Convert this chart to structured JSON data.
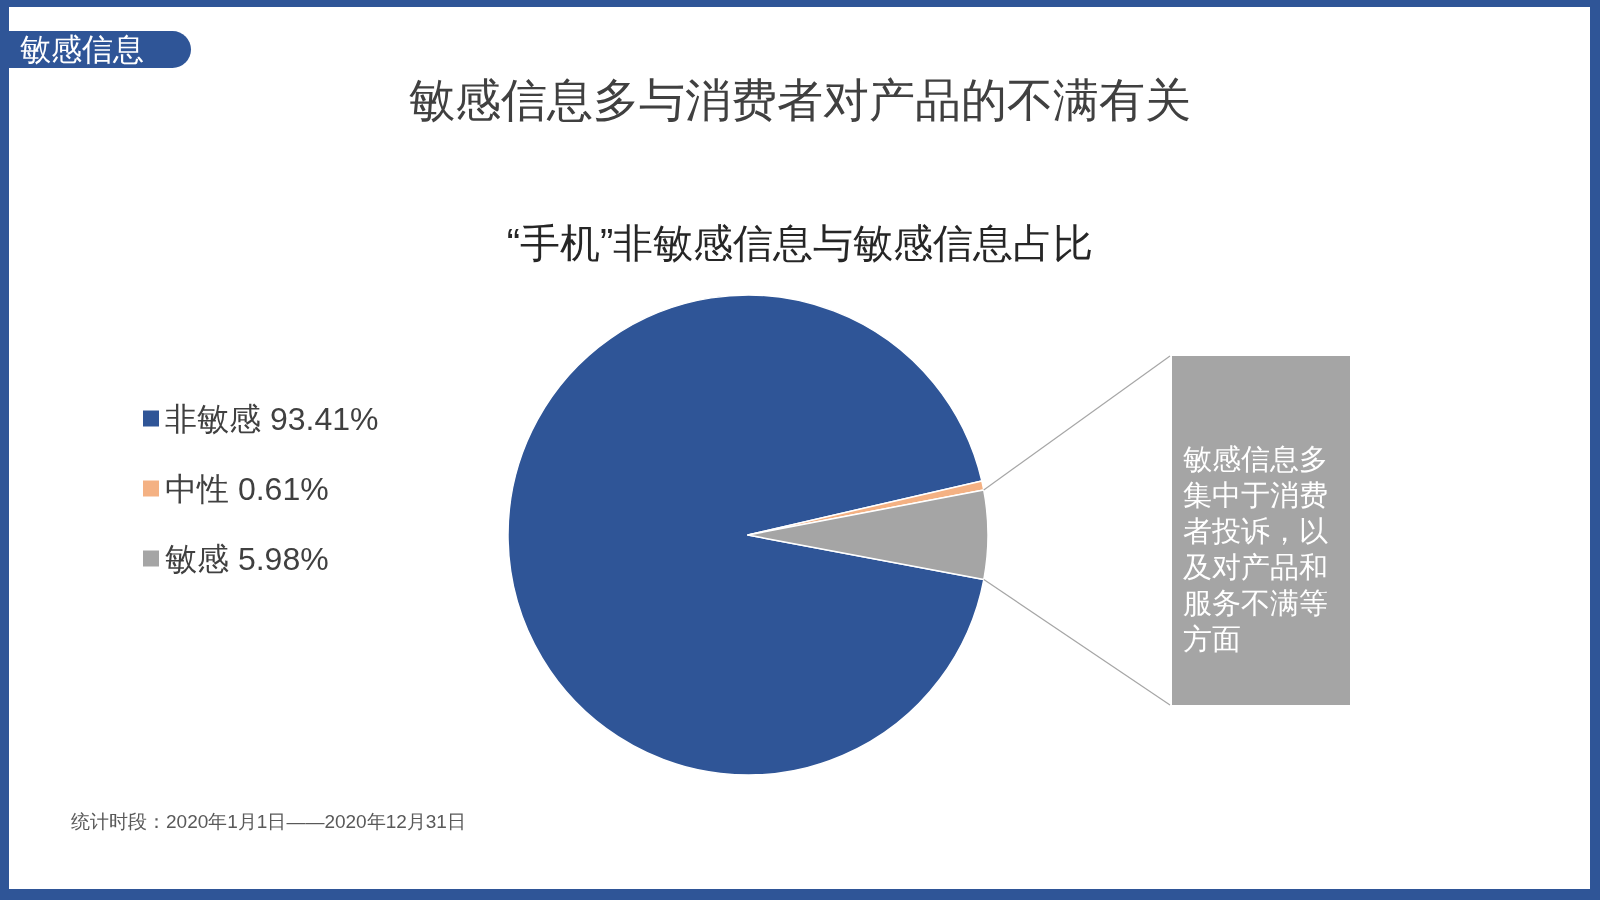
{
  "chart_data": {
    "type": "pie",
    "title": "敏感信息多与消费者对产品的不满有关",
    "subtitle": "“手机”非敏感信息与敏感信息占比",
    "categories": [
      "非敏感",
      "中性",
      "敏感"
    ],
    "values": [
      93.41,
      0.61,
      5.98
    ],
    "colors": [
      "#2f5597",
      "#f4b183",
      "#a5a5a5"
    ],
    "value_labels": [
      "93.41%",
      "0.61%",
      "5.98%"
    ],
    "legend": "left",
    "annotations": [
      "敏感信息",
      {
        "text": "敏感信息多集中于消费者投诉，以及对产品和服务不满等方面",
        "x": "敏感"
      },
      "统计时段：2020年1月1日——2020年12月31日"
    ]
  }
}
